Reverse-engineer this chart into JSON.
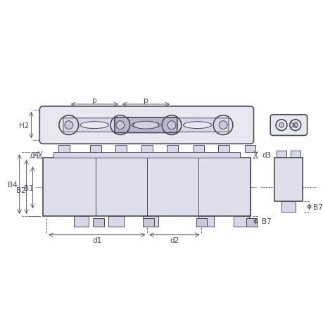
{
  "bg_color": "#ffffff",
  "line_color": "#4a4a5a",
  "dim_color": "#4a4a5a",
  "fill_light": "#d8d8e8",
  "fill_medium": "#c0c0d0",
  "fill_dark": "#a8a8b8",
  "title": "",
  "labels": {
    "p": "p",
    "H2": "H2",
    "B4": "B4",
    "B2": "B2",
    "B1": "B1",
    "d4": "d4",
    "d1": "d1",
    "d2": "d2",
    "d3": "d3",
    "B7": "B7",
    "B7r": "B7"
  }
}
